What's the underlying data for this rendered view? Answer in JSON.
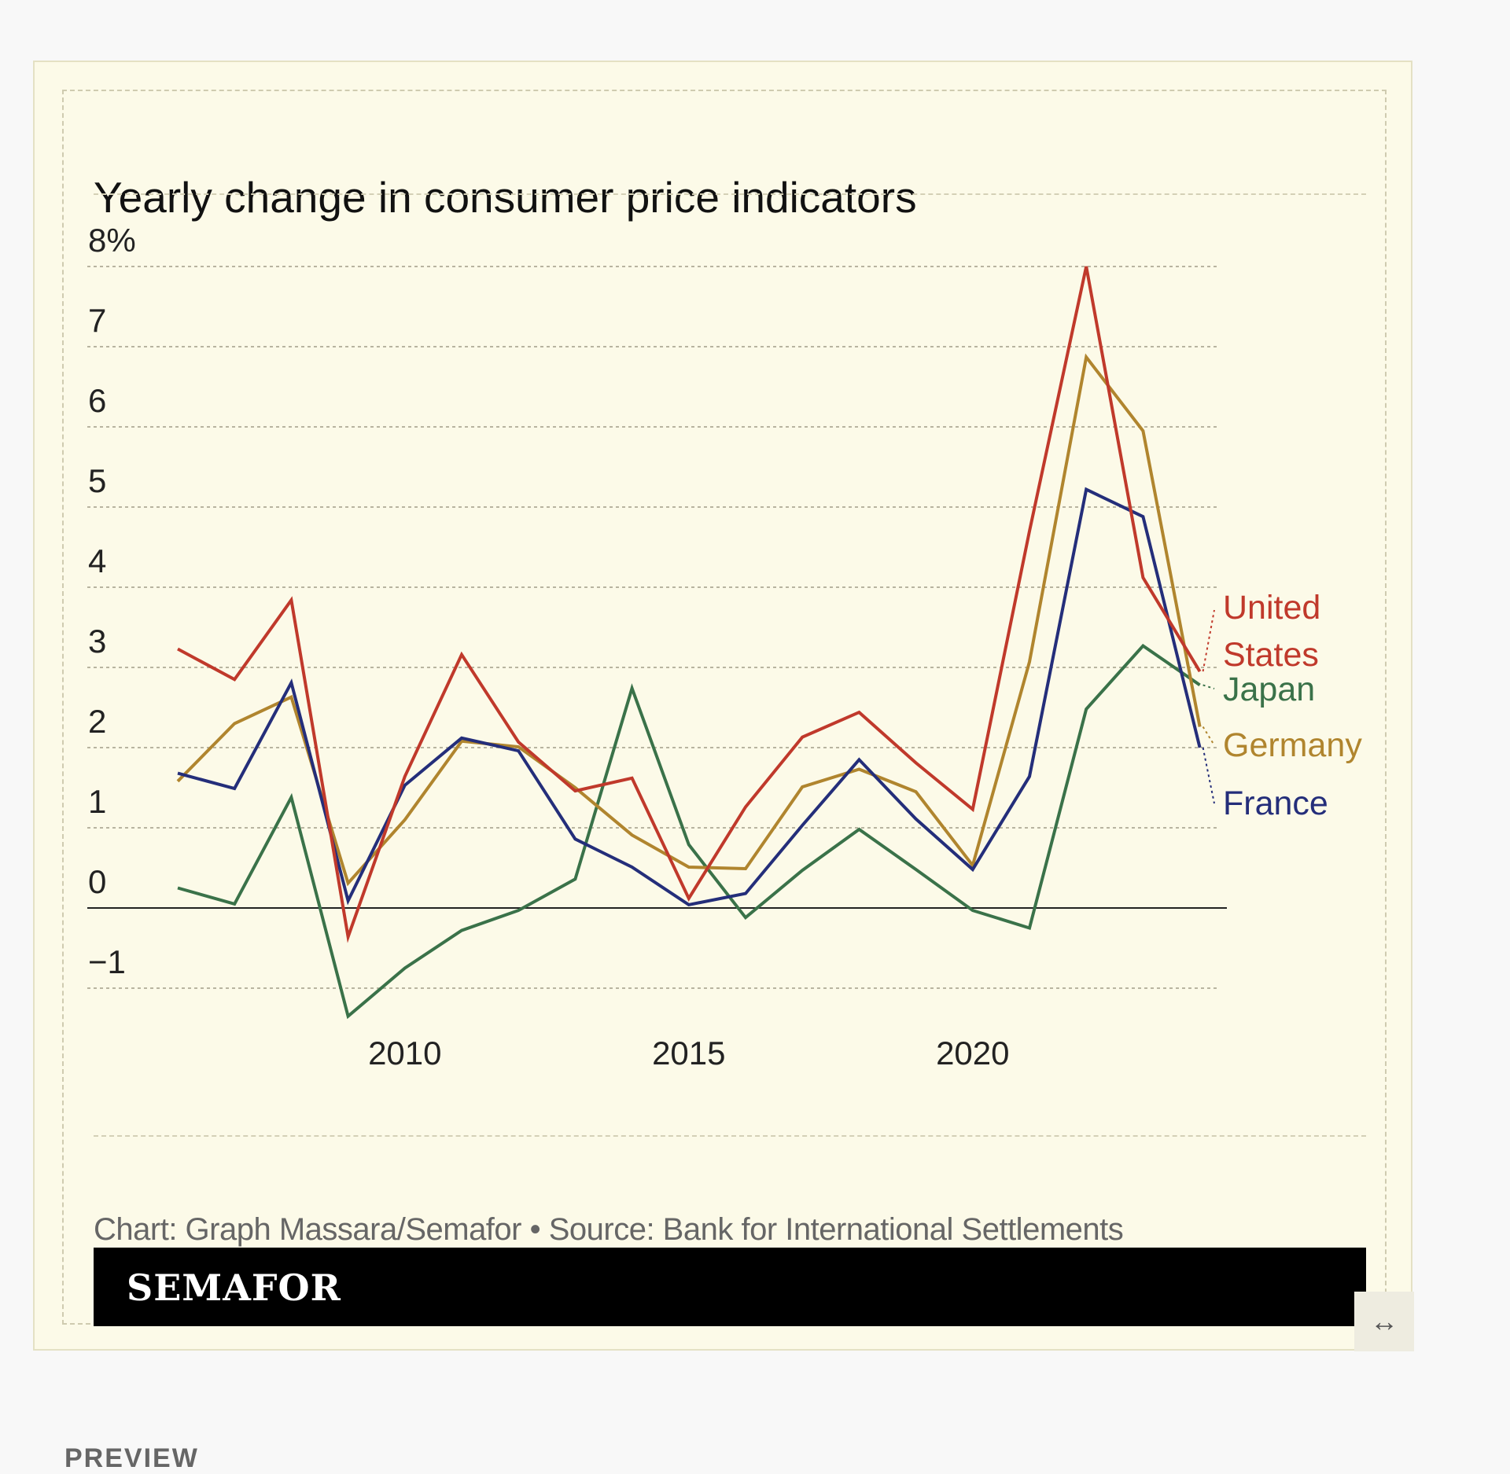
{
  "title": "Yearly change in consumer price indicators",
  "credit": "Chart: Graph Massara/Semafor • Source: Bank for International Settlements",
  "brand": "SEMAFOR",
  "resize_icon": "↔",
  "footer_label": "PREVIEW",
  "colors": {
    "United States": "#c0392b",
    "Germany": "#b0852e",
    "France": "#242e7a",
    "Japan": "#3a7249"
  },
  "chart_data": {
    "type": "line",
    "title": "Yearly change in consumer price indicators",
    "xlabel": "",
    "ylabel": "",
    "x": [
      2006,
      2007,
      2008,
      2009,
      2010,
      2011,
      2012,
      2013,
      2014,
      2015,
      2016,
      2017,
      2018,
      2019,
      2020,
      2021,
      2022,
      2023,
      2024
    ],
    "xlim": [
      2004.6,
      2024.6
    ],
    "ylim": [
      -1,
      8
    ],
    "x_ticks": [
      2010,
      2015,
      2020
    ],
    "x_tick_labels": [
      "2010",
      "2015",
      "2020"
    ],
    "y_ticks": [
      -1,
      0,
      1,
      2,
      3,
      4,
      5,
      6,
      7,
      8
    ],
    "y_tick_labels": [
      "−1",
      "0",
      "1",
      "2",
      "3",
      "4",
      "5",
      "6",
      "7",
      "8%"
    ],
    "grid": true,
    "series": [
      {
        "name": "Japan",
        "label": [
          "Japan"
        ],
        "values": [
          0.25,
          0.05,
          1.38,
          -1.35,
          -0.75,
          -0.28,
          -0.03,
          0.36,
          2.74,
          0.79,
          -0.12,
          0.47,
          0.98,
          0.48,
          -0.03,
          -0.25,
          2.48,
          3.27,
          2.78
        ]
      },
      {
        "name": "Germany",
        "label": [
          "Germany"
        ],
        "values": [
          1.58,
          2.3,
          2.63,
          0.31,
          1.1,
          2.08,
          2.01,
          1.5,
          0.91,
          0.51,
          0.49,
          1.51,
          1.73,
          1.45,
          0.53,
          3.07,
          6.87,
          5.95,
          2.26
        ]
      },
      {
        "name": "France",
        "label": [
          "France"
        ],
        "values": [
          1.68,
          1.49,
          2.81,
          0.09,
          1.53,
          2.12,
          1.96,
          0.86,
          0.51,
          0.04,
          0.18,
          1.03,
          1.85,
          1.11,
          0.48,
          1.64,
          5.22,
          4.88,
          2.0
        ]
      },
      {
        "name": "United States",
        "label": [
          "United",
          "States"
        ],
        "values": [
          3.23,
          2.85,
          3.84,
          -0.36,
          1.64,
          3.16,
          2.07,
          1.46,
          1.62,
          0.12,
          1.26,
          2.13,
          2.44,
          1.81,
          1.23,
          4.7,
          8.0,
          4.12,
          2.95
        ]
      }
    ]
  }
}
